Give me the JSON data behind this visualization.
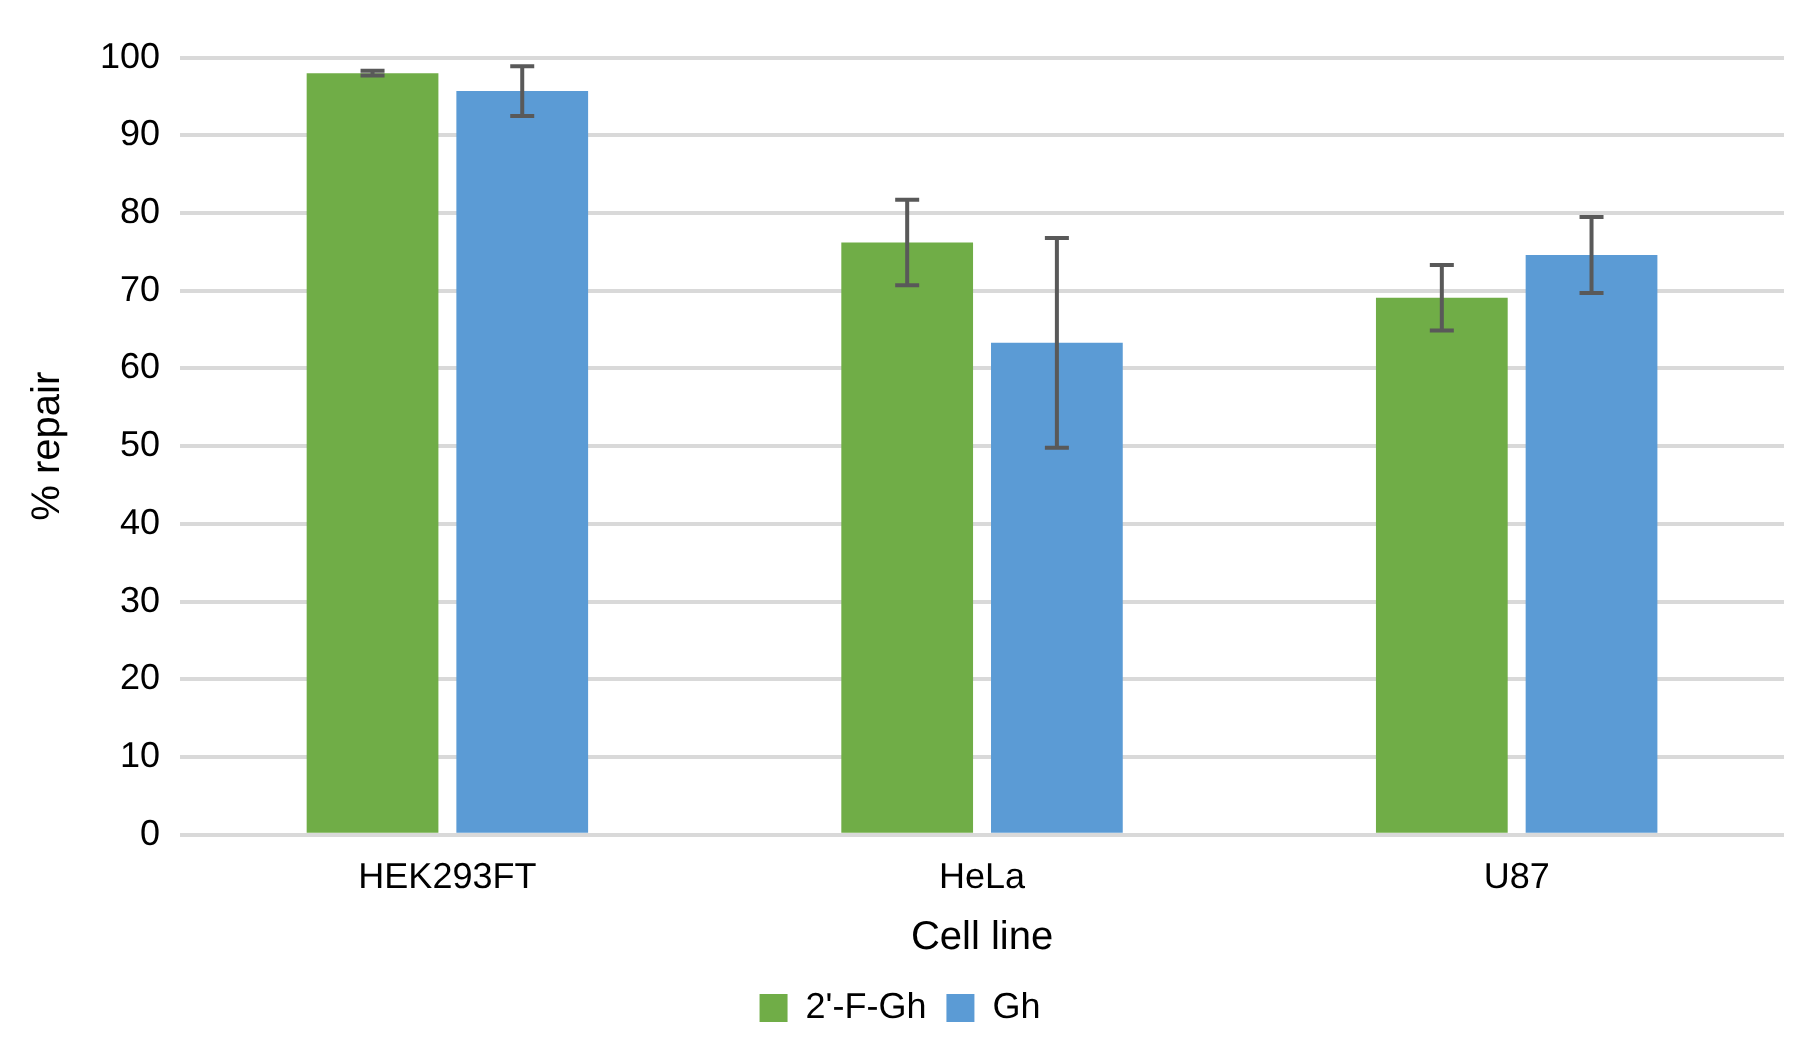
{
  "chart_data": {
    "type": "bar",
    "xlabel": "Cell line",
    "ylabel": "% repair",
    "categories": [
      "HEK293FT",
      "HeLa",
      "U87"
    ],
    "series": [
      {
        "name": "2'-F-Gh",
        "color": "#70ad47",
        "values": [
          98.0,
          76.2,
          69.1
        ],
        "errors": [
          0.3,
          5.5,
          4.2
        ]
      },
      {
        "name": "Gh",
        "color": "#5b9bd5",
        "values": [
          95.7,
          63.3,
          74.6
        ],
        "errors": [
          3.2,
          13.5,
          4.9
        ]
      }
    ],
    "ylim": [
      0,
      100
    ],
    "yticks": [
      0,
      10,
      20,
      30,
      40,
      50,
      60,
      70,
      80,
      90,
      100
    ],
    "grid": "y",
    "legend": "bottom"
  }
}
